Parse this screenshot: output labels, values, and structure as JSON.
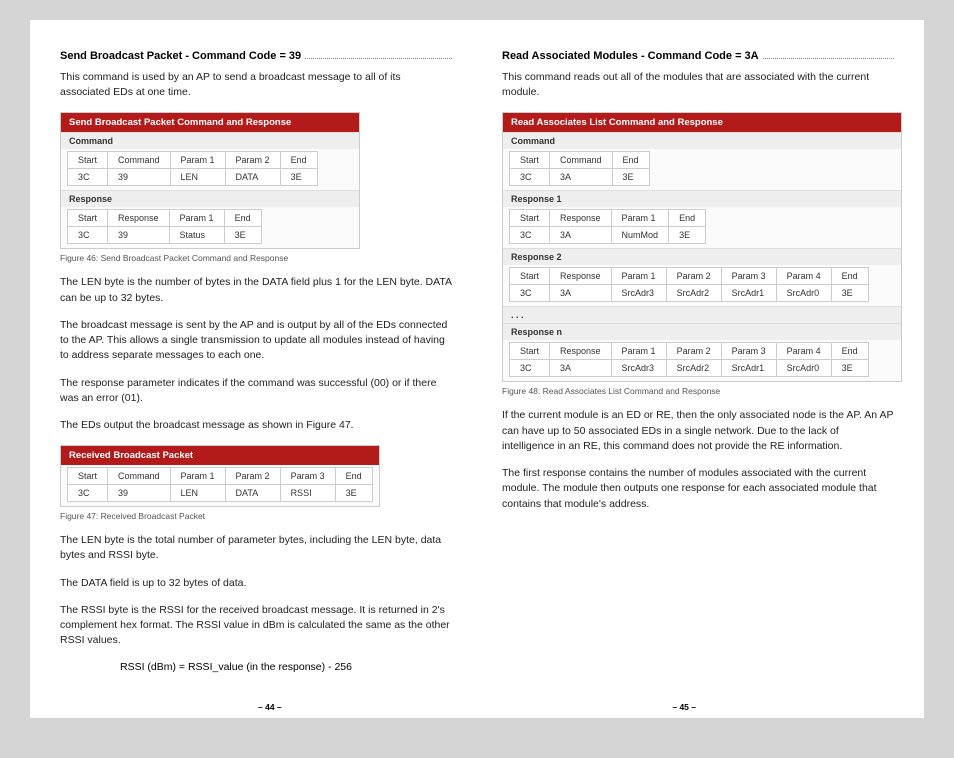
{
  "left": {
    "heading1": "Send Broadcast Packet - Command Code = 39",
    "intro1": "This command is used by an AP to send a broadcast message to all of its associated EDs at one time.",
    "table1": {
      "title": "Send Broadcast Packet Command and Response",
      "cmd_hdr": "Command",
      "cmd_row1": [
        "Start",
        "Command",
        "Param 1",
        "Param 2",
        "End"
      ],
      "cmd_row2": [
        "3C",
        "39",
        "LEN",
        "DATA",
        "3E"
      ],
      "rsp_hdr": "Response",
      "rsp_row1": [
        "Start",
        "Response",
        "Param 1",
        "End"
      ],
      "rsp_row2": [
        "3C",
        "39",
        "Status",
        "3E"
      ]
    },
    "fig1": "Figure 46: Send Broadcast Packet Command and Response",
    "p_len": "The LEN byte is the number of bytes in the DATA field plus 1 for the LEN byte. DATA can be up to 32 bytes.",
    "p_bcast": "The broadcast message is sent by the AP and is output by all of the EDs connected to the AP. This allows a single transmission to update all modules instead of having to address separate messages to each one.",
    "p_resp": "The response parameter indicates if the command was successful (00) or if there was an error (01).",
    "p_eds": "The EDs output the broadcast message as shown in Figure 47.",
    "table2": {
      "title": "Received Broadcast Packet",
      "row1": [
        "Start",
        "Command",
        "Param 1",
        "Param 2",
        "Param 3",
        "End"
      ],
      "row2": [
        "3C",
        "39",
        "LEN",
        "DATA",
        "RSSI",
        "3E"
      ]
    },
    "fig2": "Figure 47: Received Broadcast Packet",
    "p_len2": "The LEN byte is the total number of parameter bytes, including the LEN byte, data bytes and RSSI byte.",
    "p_data": "The DATA field is up to 32 bytes of data.",
    "p_rssi": "The RSSI byte is the RSSI for the received broadcast message. It is returned in 2's complement hex format. The RSSI value in dBm is calculated the same as the other RSSI values.",
    "eq": "RSSI (dBm) = RSSI_value (in the response) - 256",
    "pagenum": "– 44 –"
  },
  "right": {
    "heading1": "Read Associated Modules - Command Code = 3A",
    "intro1": "This command reads out all of the modules that are associated with the current module.",
    "table1": {
      "title": "Read Associates List Command and Response",
      "cmd_hdr": "Command",
      "cmd_row1": [
        "Start",
        "Command",
        "End"
      ],
      "cmd_row2": [
        "3C",
        "3A",
        "3E"
      ],
      "r1_hdr": "Response 1",
      "r1_row1": [
        "Start",
        "Response",
        "Param 1",
        "End"
      ],
      "r1_row2": [
        "3C",
        "3A",
        "NumMod",
        "3E"
      ],
      "r2_hdr": "Response 2",
      "r2_row1": [
        "Start",
        "Response",
        "Param 1",
        "Param 2",
        "Param 3",
        "Param 4",
        "End"
      ],
      "r2_row2": [
        "3C",
        "3A",
        "SrcAdr3",
        "SrcAdr2",
        "SrcAdr1",
        "SrcAdr0",
        "3E"
      ],
      "dots": ". . .",
      "rn_hdr": "Response n",
      "rn_row1": [
        "Start",
        "Response",
        "Param 1",
        "Param 2",
        "Param 3",
        "Param 4",
        "End"
      ],
      "rn_row2": [
        "3C",
        "3A",
        "SrcAdr3",
        "SrcAdr2",
        "SrcAdr1",
        "SrcAdr0",
        "3E"
      ]
    },
    "fig1": "Figure 48: Read Associates List Command and Response",
    "p1": "If the current module is an ED or RE, then the only associated node is the AP. An AP can have up to 50 associated EDs in a single network. Due to the lack of intelligence in an RE, this command does not provide the RE information.",
    "p2": "The first response contains the number of modules associated with the current module. The module then outputs one response for each associated module that contains that module's address.",
    "pagenum": "– 45 –"
  }
}
